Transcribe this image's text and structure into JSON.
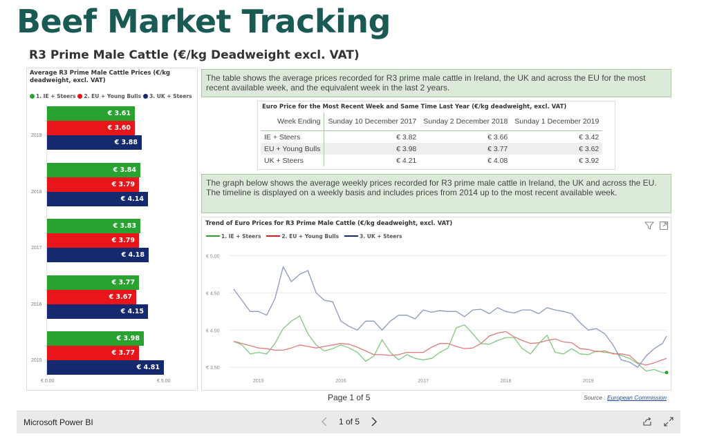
{
  "page": {
    "title": "Beef Market Tracking",
    "subtitle": "R3 Prime Male Cattle (€/kg Deadweight excl. VAT)"
  },
  "bar_chart": {
    "title": "Average R3 Prime Male Cattle Prices (€/kg deadweight, excl. VAT)",
    "legend": [
      "1. IE + Steers",
      "2. EU + Young Bulls",
      "3. UK + Steers"
    ],
    "axis_ticks": [
      "€ 0.00",
      "€ 5.00"
    ]
  },
  "chart_data": [
    {
      "type": "bar",
      "orientation": "horizontal",
      "title": "Average R3 Prime Male Cattle Prices (€/kg deadweight, excl. VAT)",
      "categories": [
        "2019",
        "2018",
        "2017",
        "2016",
        "2015"
      ],
      "series": [
        {
          "name": "1. IE + Steers",
          "color": "#2aa232",
          "values": [
            3.61,
            3.84,
            3.83,
            3.77,
            3.98
          ],
          "labels": [
            "€ 3.61",
            "€ 3.84",
            "€ 3.83",
            "€ 3.77",
            "€ 3.98"
          ]
        },
        {
          "name": "2. EU + Young Bulls",
          "color": "#e8151b",
          "values": [
            3.6,
            3.79,
            3.79,
            3.67,
            3.77
          ],
          "labels": [
            "€ 3.60",
            "€ 3.79",
            "€ 3.79",
            "€ 3.67",
            "€ 3.77"
          ]
        },
        {
          "name": "3. UK + Steers",
          "color": "#14296e",
          "values": [
            3.88,
            4.14,
            4.18,
            4.15,
            4.81
          ],
          "labels": [
            "€ 3.88",
            "€ 4.14",
            "€ 4.18",
            "€ 4.15",
            "€ 4.81"
          ]
        }
      ],
      "xlim": [
        0,
        5
      ],
      "grid": false,
      "legend_position": "top-left"
    },
    {
      "type": "line",
      "title": "Trend of Euro Prices for R3 Prime Male Cattle (€/kg deadweight, excl. VAT)",
      "x": [
        2014.7,
        2014.8,
        2014.9,
        2015.0,
        2015.1,
        2015.2,
        2015.3,
        2015.4,
        2015.5,
        2015.6,
        2015.7,
        2015.8,
        2015.9,
        2016.0,
        2016.1,
        2016.2,
        2016.3,
        2016.4,
        2016.5,
        2016.6,
        2016.7,
        2016.8,
        2016.9,
        2017.0,
        2017.1,
        2017.2,
        2017.3,
        2017.4,
        2017.5,
        2017.6,
        2017.7,
        2017.8,
        2017.9,
        2018.0,
        2018.1,
        2018.2,
        2018.3,
        2018.4,
        2018.5,
        2018.6,
        2018.7,
        2018.8,
        2018.9,
        2019.0,
        2019.1,
        2019.2,
        2019.3,
        2019.4,
        2019.5,
        2019.6,
        2019.7,
        2019.8,
        2019.9,
        2019.95
      ],
      "series": [
        {
          "name": "1. IE + Steers",
          "color": "#7ec87e",
          "values": [
            3.85,
            3.8,
            3.68,
            3.7,
            3.68,
            3.82,
            4.02,
            4.12,
            4.19,
            3.95,
            3.8,
            3.72,
            3.75,
            3.8,
            3.76,
            3.7,
            3.58,
            3.65,
            3.87,
            3.7,
            3.6,
            3.67,
            3.62,
            3.6,
            3.62,
            3.7,
            3.76,
            4.03,
            4.07,
            3.95,
            3.82,
            3.81,
            3.86,
            3.9,
            3.9,
            3.75,
            3.68,
            3.82,
            3.93,
            3.7,
            3.68,
            3.75,
            3.68,
            3.67,
            3.72,
            3.7,
            3.69,
            3.66,
            3.62,
            3.55,
            3.45,
            3.47,
            3.43,
            3.43
          ]
        },
        {
          "name": "2. EU + Young Bulls",
          "color": "#e07a7a",
          "values": [
            3.85,
            3.82,
            3.79,
            3.76,
            3.75,
            3.73,
            3.73,
            3.76,
            3.8,
            3.78,
            3.76,
            3.78,
            3.8,
            3.82,
            3.81,
            3.77,
            3.72,
            3.67,
            3.67,
            3.66,
            3.67,
            3.7,
            3.7,
            3.7,
            3.77,
            3.82,
            3.82,
            3.78,
            3.75,
            3.76,
            3.82,
            3.92,
            3.96,
            3.98,
            3.91,
            3.86,
            3.82,
            3.83,
            3.86,
            3.88,
            3.84,
            3.83,
            3.75,
            3.74,
            3.71,
            3.72,
            3.68,
            3.68,
            3.66,
            3.56,
            3.53,
            3.56,
            3.6,
            3.62
          ]
        },
        {
          "name": "3. UK + Steers",
          "color": "#8a98bc",
          "values": [
            4.55,
            4.4,
            4.25,
            4.25,
            4.2,
            4.42,
            4.85,
            4.65,
            4.75,
            4.8,
            4.5,
            4.4,
            4.38,
            4.12,
            4.05,
            4.0,
            4.12,
            4.12,
            4.0,
            4.12,
            4.2,
            4.2,
            4.15,
            4.27,
            4.24,
            4.26,
            4.25,
            4.25,
            4.18,
            4.27,
            4.28,
            4.22,
            4.3,
            4.25,
            4.23,
            4.27,
            4.27,
            4.22,
            4.3,
            4.27,
            4.25,
            4.22,
            4.1,
            4.0,
            4.02,
            3.95,
            3.8,
            3.6,
            3.57,
            3.5,
            3.65,
            3.75,
            3.82,
            3.92
          ]
        }
      ],
      "xlabels": [
        "2015",
        "2016",
        "2017",
        "2018",
        "2019"
      ],
      "yticks": [
        "€ 3.50",
        "€ 4.00",
        "€ 4.50",
        "€ 5.00"
      ],
      "ylim": [
        3.4,
        5.05
      ],
      "xlim": [
        2014.65,
        2019.95
      ],
      "grid": true,
      "legend_position": "top-left"
    }
  ],
  "info": {
    "table_desc": "The table shows the average prices recorded for R3 prime male cattle in Ireland, the UK and across the EU for the most recent available week, and the equivalent week in the last 2 years.",
    "graph_desc": "The graph below shows the average weekly prices recorded for R3 prime male cattle in Ireland, the UK and across the EU. The timeline is displayed on a weekly basis and includes prices from 2014 up to the most recent available week."
  },
  "price_table": {
    "title": "Euro Price for the Most Recent Week and Same Time Last Year (€/kg deadweight, excl. VAT)",
    "columns": [
      "Week Ending",
      "Sunday 10 December 2017",
      "Sunday 2 December 2018",
      "Sunday 1 December 2019"
    ],
    "rows": [
      {
        "label": "IE + Steers",
        "values": [
          "€ 3.82",
          "€ 3.66",
          "€ 3.42"
        ]
      },
      {
        "label": "EU + Young Bulls",
        "values": [
          "€ 3.98",
          "€ 3.77",
          "€ 3.62"
        ]
      },
      {
        "label": "UK + Steers",
        "values": [
          "€ 4.21",
          "€ 4.08",
          "€ 3.92"
        ]
      }
    ]
  },
  "trend_chart": {
    "title": "Trend of Euro Prices for R3 Prime Male Cattle (€/kg deadweight, excl. VAT)",
    "legend": [
      "1. IE + Steers",
      "2. EU + Young Bulls",
      "3. UK + Steers"
    ]
  },
  "footer": {
    "page_indicator": "Page 1 of 5",
    "source_label": "Source : ",
    "source_link": "European Commission",
    "brand": "Microsoft Power BI",
    "pager": "1 of 5"
  },
  "icons": {
    "filter": "filter-icon",
    "focus": "focus-mode-icon",
    "prev": "chevron-left-icon",
    "next": "chevron-right-icon",
    "share": "share-icon",
    "fullscreen": "fullscreen-icon"
  }
}
